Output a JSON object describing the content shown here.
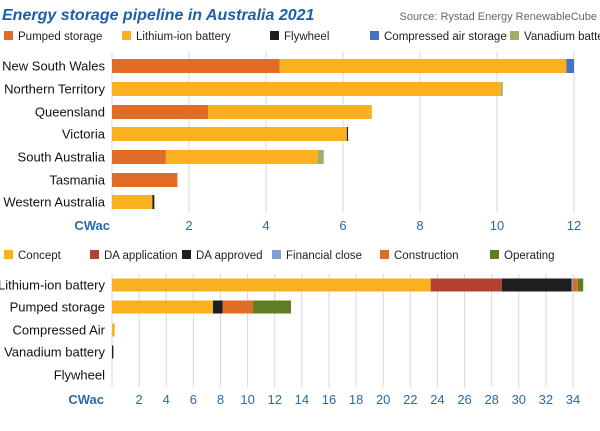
{
  "title": "Energy storage pipeline in Australia 2021",
  "source": "Source: Rystad Energy RenewableCube",
  "colors": {
    "title": "#1f5fa8",
    "axis": "#2a6aa8"
  },
  "chart_data": [
    {
      "type": "bar",
      "orientation": "horizontal",
      "stacked": true,
      "xlabel": "CWac",
      "xlim": [
        0,
        12
      ],
      "xticks": [
        2,
        4,
        6,
        8,
        10,
        12
      ],
      "grid": true,
      "legend_placement": "top",
      "categories": [
        "New South Wales",
        "Northern Territory",
        "Queensland",
        "Victoria",
        "South Australia",
        "Tasmania",
        "Western Australia"
      ],
      "series": [
        {
          "name": "Pumped storage",
          "color": "#e06c26",
          "values": [
            4.35,
            0,
            2.5,
            0,
            1.4,
            1.7,
            0
          ]
        },
        {
          "name": "Lithium-ion battery",
          "color": "#fbb11f",
          "values": [
            7.45,
            10.1,
            4.25,
            6.1,
            3.95,
            0,
            1.05
          ]
        },
        {
          "name": "Flywheel",
          "color": "#1e1e1e",
          "values": [
            0,
            0,
            0,
            0.03,
            0,
            0,
            0.05
          ]
        },
        {
          "name": "Compressed air storage",
          "color": "#4472c4",
          "values": [
            0.2,
            0,
            0,
            0,
            0,
            0,
            0
          ]
        },
        {
          "name": "Vanadium battery",
          "color": "#9bb06a",
          "values": [
            0,
            0.05,
            0,
            0,
            0.15,
            0,
            0
          ]
        }
      ]
    },
    {
      "type": "bar",
      "orientation": "horizontal",
      "stacked": true,
      "xlabel": "CWac",
      "xlim": [
        0,
        35
      ],
      "xticks": [
        2,
        4,
        6,
        8,
        10,
        12,
        14,
        16,
        18,
        20,
        22,
        24,
        26,
        28,
        30,
        32,
        34
      ],
      "grid": true,
      "legend_placement": "top",
      "categories": [
        "Lithium-ion battery",
        "Pumped storage",
        "Compressed Air",
        "Vanadium battery",
        "Flywheel"
      ],
      "series": [
        {
          "name": "Concept",
          "color": "#fbb11f",
          "values": [
            23.5,
            7.45,
            0.2,
            0,
            0
          ]
        },
        {
          "name": "DA application",
          "color": "#b5402f",
          "values": [
            5.25,
            0,
            0,
            0,
            0
          ]
        },
        {
          "name": "DA approved",
          "color": "#1e1e1e",
          "values": [
            5.15,
            0.7,
            0,
            0.1,
            0
          ]
        },
        {
          "name": "Financial close",
          "color": "#7f9fd0",
          "values": [
            0.1,
            0,
            0,
            0,
            0
          ]
        },
        {
          "name": "Construction",
          "color": "#e06c26",
          "values": [
            0.35,
            2.25,
            0,
            0,
            0
          ]
        },
        {
          "name": "Operating",
          "color": "#5e7f21",
          "values": [
            0.4,
            2.8,
            0,
            0,
            0
          ]
        }
      ]
    }
  ]
}
